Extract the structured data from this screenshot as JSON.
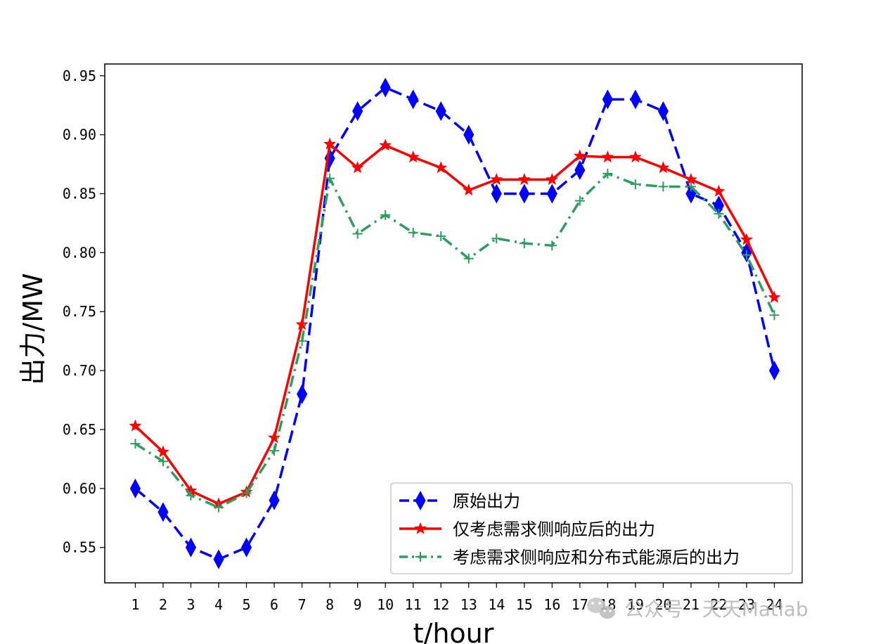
{
  "chart_data": {
    "type": "line",
    "xlabel": "t/hour",
    "ylabel": "出力/MW",
    "x": [
      1,
      2,
      3,
      4,
      5,
      6,
      7,
      8,
      9,
      10,
      11,
      12,
      13,
      14,
      15,
      16,
      17,
      18,
      19,
      20,
      21,
      22,
      23,
      24
    ],
    "xlim": [
      -0.1,
      25.0
    ],
    "ylim": [
      0.52,
      0.96
    ],
    "yticks": [
      0.55,
      0.6,
      0.65,
      0.7,
      0.75,
      0.8,
      0.85,
      0.9,
      0.95
    ],
    "ytick_labels": [
      "0.55",
      "0.60",
      "0.65",
      "0.70",
      "0.75",
      "0.80",
      "0.85",
      "0.90",
      "0.95"
    ],
    "xtick_labels": [
      "1",
      "2",
      "3",
      "4",
      "5",
      "6",
      "7",
      "8",
      "9",
      "10",
      "11",
      "12",
      "13",
      "14",
      "15",
      "16",
      "17",
      "18",
      "19",
      "20",
      "21",
      "22",
      "23",
      "24"
    ],
    "legend_position": "lower-right",
    "series": [
      {
        "name": "原始出力",
        "color": "#0000ff",
        "marker": "diamond",
        "linestyle": "dashed",
        "values": [
          0.6,
          0.58,
          0.55,
          0.54,
          0.55,
          0.59,
          0.68,
          0.88,
          0.92,
          0.94,
          0.93,
          0.92,
          0.9,
          0.85,
          0.85,
          0.85,
          0.87,
          0.93,
          0.93,
          0.92,
          0.85,
          0.84,
          0.8,
          0.7
        ]
      },
      {
        "name": "仅考虑需求侧响应后的出力",
        "color": "#ff0000",
        "marker": "star",
        "linestyle": "solid",
        "values": [
          0.653,
          0.631,
          0.598,
          0.587,
          0.597,
          0.643,
          0.739,
          0.892,
          0.872,
          0.891,
          0.881,
          0.872,
          0.853,
          0.862,
          0.862,
          0.862,
          0.882,
          0.881,
          0.881,
          0.872,
          0.862,
          0.852,
          0.811,
          0.762
        ]
      },
      {
        "name": "考虑需求侧响应和分布式能源后的出力",
        "color": "#2e9e5e",
        "marker": "plus",
        "linestyle": "dashdot",
        "values": [
          0.638,
          0.623,
          0.594,
          0.584,
          0.596,
          0.632,
          0.725,
          0.863,
          0.816,
          0.832,
          0.817,
          0.814,
          0.795,
          0.812,
          0.808,
          0.806,
          0.844,
          0.867,
          0.858,
          0.856,
          0.856,
          0.833,
          0.798,
          0.747
        ]
      }
    ]
  },
  "watermark": {
    "text": "公众号 · 天天Matlab",
    "icon": "wechat-icon"
  }
}
